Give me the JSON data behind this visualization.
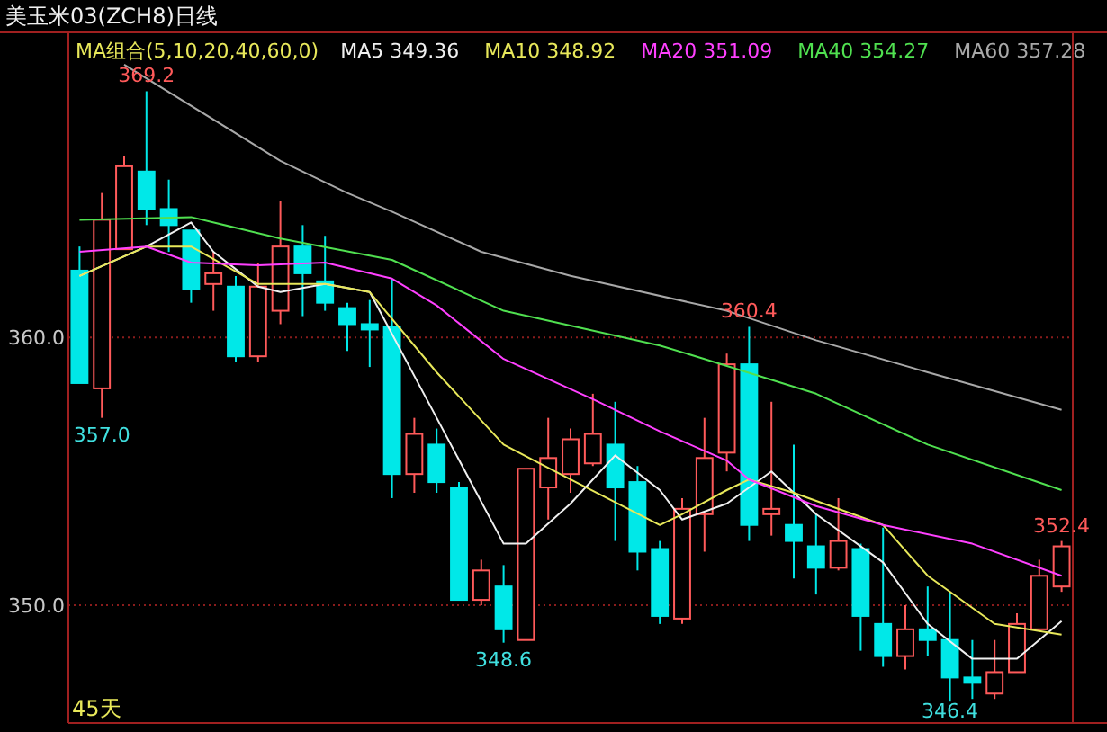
{
  "chart_data": {
    "type": "candlestick",
    "title": "美玉米03(ZCH8)日线",
    "legend_title": "MA组合(5,10,20,40,60,0)",
    "legend": "top",
    "grid": "y",
    "categories": [
      null,
      null,
      null,
      null,
      null,
      null,
      null,
      null,
      null,
      null,
      null,
      null,
      null,
      null,
      null,
      null,
      null,
      null,
      null,
      null,
      null,
      null,
      null,
      null,
      null,
      null,
      null,
      null,
      null,
      null,
      null,
      null,
      null,
      null,
      null,
      null,
      null,
      null,
      null,
      null,
      null,
      null,
      null,
      null,
      null
    ],
    "ylim": [
      345.6,
      371.4
    ],
    "yticks": [
      {
        "value": 360,
        "label": "360.0"
      },
      {
        "value": 350,
        "label": "350.0"
      }
    ],
    "ohlc": [
      [
        362.5,
        363.4,
        358.3,
        358.3
      ],
      [
        358.1,
        365.4,
        357.0,
        364.4
      ],
      [
        363.3,
        366.8,
        363.3,
        366.4
      ],
      [
        366.2,
        369.2,
        364.2,
        364.8
      ],
      [
        364.8,
        365.9,
        363.2,
        364.2
      ],
      [
        364.0,
        364.0,
        361.3,
        361.8
      ],
      [
        362.0,
        363.2,
        361.0,
        362.4
      ],
      [
        361.9,
        362.3,
        359.1,
        359.3
      ],
      [
        359.3,
        362.8,
        359.1,
        361.9
      ],
      [
        361.0,
        365.1,
        360.5,
        363.4
      ],
      [
        363.4,
        364.2,
        360.8,
        362.4
      ],
      [
        362.1,
        363.8,
        361.0,
        361.3
      ],
      [
        361.1,
        361.3,
        359.5,
        360.5
      ],
      [
        360.5,
        361.4,
        358.9,
        360.3
      ],
      [
        360.4,
        362.2,
        354.0,
        354.9
      ],
      [
        354.9,
        357.0,
        354.2,
        356.4
      ],
      [
        356.0,
        356.6,
        354.2,
        354.6
      ],
      [
        354.4,
        354.6,
        350.2,
        350.2
      ],
      [
        350.2,
        351.7,
        350.0,
        351.3
      ],
      [
        350.7,
        351.5,
        348.6,
        349.1
      ],
      [
        348.7,
        355.1,
        348.7,
        355.1
      ],
      [
        354.4,
        357.0,
        353.2,
        355.5
      ],
      [
        354.9,
        356.6,
        354.2,
        356.2
      ],
      [
        355.3,
        357.9,
        355.2,
        356.4
      ],
      [
        356.0,
        357.6,
        352.4,
        354.4
      ],
      [
        354.6,
        355.2,
        351.3,
        352.0
      ],
      [
        352.1,
        352.4,
        349.3,
        349.6
      ],
      [
        349.5,
        354.0,
        349.3,
        353.6
      ],
      [
        353.4,
        357.0,
        352.0,
        355.5
      ],
      [
        355.7,
        359.4,
        355.0,
        359.0
      ],
      [
        359.0,
        360.4,
        352.4,
        353.0
      ],
      [
        353.4,
        357.6,
        352.6,
        353.6
      ],
      [
        353.0,
        356.0,
        351.0,
        352.4
      ],
      [
        352.2,
        353.4,
        350.4,
        351.4
      ],
      [
        351.4,
        354.0,
        351.3,
        352.4
      ],
      [
        352.1,
        352.3,
        348.3,
        349.6
      ],
      [
        349.3,
        352.9,
        347.7,
        348.1
      ],
      [
        348.1,
        350.0,
        347.6,
        349.1
      ],
      [
        349.1,
        350.7,
        348.1,
        348.7
      ],
      [
        348.7,
        350.5,
        346.4,
        347.3
      ],
      [
        347.3,
        348.7,
        346.5,
        347.1
      ],
      [
        346.7,
        348.7,
        346.5,
        347.5
      ],
      [
        347.5,
        349.7,
        347.5,
        349.3
      ],
      [
        349.1,
        351.7,
        349.1,
        351.1
      ],
      [
        350.7,
        352.4,
        350.5,
        352.2
      ]
    ],
    "series": [
      {
        "name": "MA5 349.36",
        "type": "line",
        "color": "#f0f0f0",
        "values": [
          362.3,
          null,
          null,
          363.4,
          null,
          364.3,
          363.2,
          null,
          361.9,
          361.7,
          null,
          362.0,
          null,
          361.7,
          null,
          null,
          357.0,
          null,
          null,
          352.3,
          352.3,
          null,
          353.8,
          null,
          355.6,
          null,
          354.3,
          353.2,
          null,
          353.8,
          null,
          355.0,
          null,
          353.4,
          null,
          null,
          351.6,
          null,
          349.3,
          null,
          348.0,
          null,
          348.0,
          null,
          349.4
        ]
      },
      {
        "name": "MA10 348.92",
        "type": "line",
        "color": "#e8e85a",
        "values": [
          362.3,
          null,
          null,
          363.4,
          null,
          363.4,
          null,
          null,
          362.0,
          null,
          null,
          362.0,
          null,
          361.7,
          null,
          null,
          358.7,
          null,
          null,
          356.0,
          null,
          null,
          354.7,
          null,
          null,
          null,
          353.0,
          353.4,
          null,
          354.3,
          354.7,
          null,
          354.2,
          null,
          null,
          null,
          353.0,
          null,
          351.1,
          null,
          null,
          349.3,
          null,
          null,
          348.9
        ]
      },
      {
        "name": "MA20 351.09",
        "type": "line",
        "color": "#ff40ff",
        "values": [
          363.2,
          null,
          null,
          363.4,
          null,
          362.8,
          null,
          null,
          362.7,
          null,
          null,
          362.8,
          null,
          null,
          362.2,
          null,
          361.2,
          null,
          null,
          359.2,
          null,
          null,
          null,
          357.7,
          null,
          null,
          356.5,
          null,
          null,
          355.4,
          354.7,
          null,
          null,
          353.7,
          null,
          null,
          353.0,
          null,
          null,
          null,
          352.3,
          null,
          null,
          null,
          351.1
        ]
      },
      {
        "name": "MA40 354.27",
        "type": "line",
        "color": "#50e050",
        "values": [
          364.4,
          null,
          null,
          null,
          null,
          364.5,
          null,
          null,
          null,
          363.7,
          null,
          null,
          null,
          null,
          362.9,
          null,
          null,
          null,
          null,
          361.0,
          null,
          null,
          null,
          null,
          null,
          null,
          359.7,
          null,
          359.2,
          null,
          null,
          null,
          null,
          357.9,
          null,
          null,
          null,
          null,
          356.0,
          null,
          null,
          null,
          null,
          null,
          354.3
        ]
      },
      {
        "name": "MA60 357.28",
        "type": "line",
        "color": "#a8a8a8",
        "values": [
          null,
          null,
          370.2,
          null,
          null,
          null,
          null,
          null,
          null,
          366.6,
          null,
          null,
          365.4,
          null,
          364.7,
          null,
          null,
          null,
          363.2,
          null,
          null,
          null,
          362.3,
          null,
          null,
          null,
          null,
          null,
          null,
          361.0,
          null,
          null,
          null,
          359.9,
          null,
          null,
          null,
          null,
          358.7,
          null,
          null,
          null,
          null,
          null,
          357.3
        ]
      }
    ],
    "annotations": [
      {
        "text": "369.2",
        "y": 369.2
      },
      {
        "text": "357.0",
        "y": 357.0
      },
      {
        "text": "348.6",
        "y": 348.6
      },
      {
        "text": "360.4",
        "y": 360.4
      },
      {
        "text": "352.4",
        "y": 352.4
      },
      {
        "text": "346.4",
        "y": 346.4
      },
      "45天"
    ]
  }
}
